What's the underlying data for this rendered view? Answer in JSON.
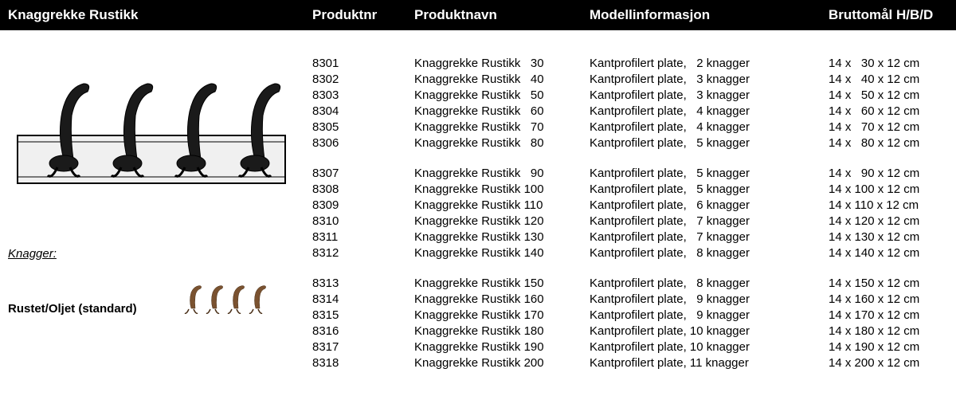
{
  "header": {
    "title": "Knaggrekke Rustikk",
    "col_nr": "Produktnr",
    "col_navn": "Produktnavn",
    "col_model": "Modellinformasjon",
    "col_dim": "Bruttomål H/B/D"
  },
  "left": {
    "knagger_label": "Knagger:",
    "variant_label": "Rustet/Oljet  (standard)"
  },
  "colors": {
    "header_bg": "#000000",
    "header_fg": "#ffffff",
    "body_bg": "#ffffff",
    "text": "#000000"
  },
  "groups": [
    {
      "rows": [
        {
          "nr": "8301",
          "navn": "Knaggrekke Rustikk   30",
          "model": "Kantprofilert plate,   2 knagger",
          "dim": "14 x   30 x 12 cm"
        },
        {
          "nr": "8302",
          "navn": "Knaggrekke Rustikk   40",
          "model": "Kantprofilert plate,   3 knagger",
          "dim": "14 x   40 x 12 cm"
        },
        {
          "nr": "8303",
          "navn": "Knaggrekke Rustikk   50",
          "model": "Kantprofilert plate,   3 knagger",
          "dim": "14 x   50 x 12 cm"
        },
        {
          "nr": "8304",
          "navn": "Knaggrekke Rustikk   60",
          "model": "Kantprofilert plate,   4 knagger",
          "dim": "14 x   60 x 12 cm"
        },
        {
          "nr": "8305",
          "navn": "Knaggrekke Rustikk   70",
          "model": "Kantprofilert plate,   4 knagger",
          "dim": "14 x   70 x 12 cm"
        },
        {
          "nr": "8306",
          "navn": "Knaggrekke Rustikk   80",
          "model": "Kantprofilert plate,   5 knagger",
          "dim": "14 x   80 x 12 cm"
        }
      ]
    },
    {
      "rows": [
        {
          "nr": "8307",
          "navn": "Knaggrekke Rustikk   90",
          "model": "Kantprofilert plate,   5 knagger",
          "dim": "14 x   90 x 12 cm"
        },
        {
          "nr": "8308",
          "navn": "Knaggrekke Rustikk 100",
          "model": "Kantprofilert plate,   5 knagger",
          "dim": "14 x 100 x 12 cm"
        },
        {
          "nr": "8309",
          "navn": "Knaggrekke Rustikk 110",
          "model": "Kantprofilert plate,   6 knagger",
          "dim": "14 x 110 x 12 cm"
        },
        {
          "nr": "8310",
          "navn": "Knaggrekke Rustikk 120",
          "model": "Kantprofilert plate,   7 knagger",
          "dim": "14 x 120 x 12 cm"
        },
        {
          "nr": "8311",
          "navn": "Knaggrekke Rustikk 130",
          "model": "Kantprofilert plate,   7 knagger",
          "dim": "14 x 130 x 12 cm"
        },
        {
          "nr": "8312",
          "navn": "Knaggrekke Rustikk 140",
          "model": "Kantprofilert plate,   8 knagger",
          "dim": "14 x 140 x 12 cm"
        }
      ]
    },
    {
      "rows": [
        {
          "nr": "8313",
          "navn": "Knaggrekke Rustikk 150",
          "model": "Kantprofilert plate,   8 knagger",
          "dim": "14 x 150 x 12 cm"
        },
        {
          "nr": "8314",
          "navn": "Knaggrekke Rustikk 160",
          "model": "Kantprofilert plate,   9 knagger",
          "dim": "14 x 160 x 12 cm"
        },
        {
          "nr": "8315",
          "navn": "Knaggrekke Rustikk 170",
          "model": "Kantprofilert plate,   9 knagger",
          "dim": "14 x 170 x 12 cm"
        },
        {
          "nr": "8316",
          "navn": "Knaggrekke Rustikk 180",
          "model": "Kantprofilert plate, 10 knagger",
          "dim": "14 x 180 x 12 cm"
        },
        {
          "nr": "8317",
          "navn": "Knaggrekke Rustikk 190",
          "model": "Kantprofilert plate, 10 knagger",
          "dim": "14 x 190 x 12 cm"
        },
        {
          "nr": "8318",
          "navn": "Knaggrekke Rustikk 200",
          "model": "Kantprofilert plate, 11 knagger",
          "dim": "14 x 200 x 12 cm"
        }
      ]
    }
  ]
}
